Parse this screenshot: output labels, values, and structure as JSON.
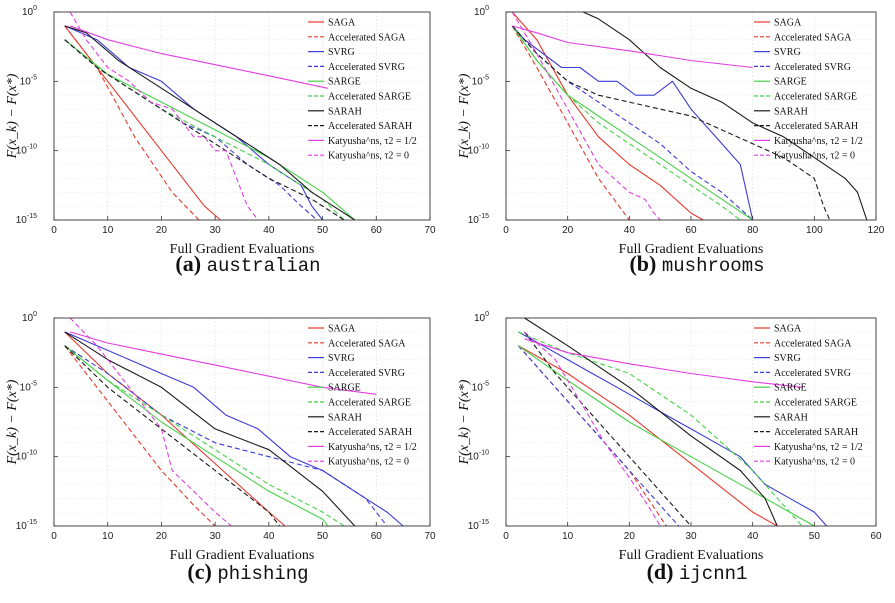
{
  "legend_entries": [
    {
      "name": "SAGA",
      "color": "#e8382c",
      "dash": false
    },
    {
      "name": "Accelerated SAGA",
      "color": "#e8382c",
      "dash": true
    },
    {
      "name": "SVRG",
      "color": "#3c3cd8",
      "dash": false
    },
    {
      "name": "Accelerated SVRG",
      "color": "#3c3cd8",
      "dash": true
    },
    {
      "name": "SARGE",
      "color": "#46d246",
      "dash": false
    },
    {
      "name": "Accelerated SARGE",
      "color": "#46d246",
      "dash": true
    },
    {
      "name": "SARAH",
      "color": "#1a1a1a",
      "dash": false
    },
    {
      "name": "Accelerated SARAH",
      "color": "#1a1a1a",
      "dash": true
    },
    {
      "name": "Katyusha^ns, τ2 = 1/2",
      "color": "#e23ee2",
      "dash": false
    },
    {
      "name": "Katyusha^ns, τ2 = 0",
      "color": "#e23ee2",
      "dash": true
    }
  ],
  "chart_data": [
    {
      "type": "line",
      "caption_letter": "(a)",
      "caption_name": "australian",
      "xlabel": "Full Gradient Evaluations",
      "ylabel": "F(x_k) − F(x*)",
      "xlim": [
        0,
        70
      ],
      "xticks": [
        0,
        10,
        20,
        30,
        40,
        50,
        60,
        70
      ],
      "ylim": [
        -15,
        0
      ],
      "yscale": "log",
      "yticks": [
        0,
        -5,
        -10,
        -15
      ],
      "grid": true,
      "legend": "top-right",
      "series": [
        {
          "name": "SAGA",
          "x": [
            2,
            10,
            20,
            28,
            31
          ],
          "y": [
            -1,
            -5,
            -10,
            -14,
            -15
          ]
        },
        {
          "name": "Accelerated SAGA",
          "x": [
            2,
            8,
            15,
            22,
            27
          ],
          "y": [
            -1,
            -4,
            -9,
            -13,
            -15
          ]
        },
        {
          "name": "SVRG",
          "x": [
            2,
            8,
            14,
            20,
            26,
            30,
            34,
            40,
            44,
            46,
            48,
            50
          ],
          "y": [
            -1,
            -2,
            -4,
            -5,
            -7,
            -8,
            -9,
            -11,
            -12,
            -12.5,
            -14,
            -15
          ]
        },
        {
          "name": "Accelerated SVRG",
          "x": [
            2,
            8,
            16,
            24,
            30,
            36,
            42,
            46,
            49
          ],
          "y": [
            -2,
            -4,
            -6,
            -8,
            -9,
            -11,
            -12.5,
            -14,
            -15
          ]
        },
        {
          "name": "SARGE",
          "x": [
            2,
            10,
            20,
            30,
            40,
            50,
            56
          ],
          "y": [
            -2,
            -4.5,
            -6.5,
            -8.5,
            -10.5,
            -13,
            -15
          ]
        },
        {
          "name": "Accelerated SARGE",
          "x": [
            2,
            10,
            20,
            30,
            40,
            50,
            54
          ],
          "y": [
            -2,
            -4.5,
            -7,
            -9,
            -11,
            -13.5,
            -15
          ]
        },
        {
          "name": "SARAH",
          "x": [
            2,
            6,
            12,
            18,
            24,
            30,
            36,
            42,
            48,
            54,
            56
          ],
          "y": [
            -1,
            -1.5,
            -3.5,
            -5,
            -6.5,
            -8,
            -9.5,
            -11,
            -13,
            -14.5,
            -15
          ]
        },
        {
          "name": "Accelerated SARAH",
          "x": [
            2,
            8,
            16,
            24,
            32,
            40,
            48,
            54
          ],
          "y": [
            -2,
            -4,
            -6,
            -8,
            -10,
            -12,
            -13.5,
            -15
          ]
        },
        {
          "name": "Katyusha^ns, τ2 = 1/2",
          "x": [
            3,
            10,
            20,
            30,
            40,
            51
          ],
          "y": [
            -1,
            -2,
            -3,
            -3.8,
            -4.6,
            -5.5
          ]
        },
        {
          "name": "Katyusha^ns, τ2 = 0",
          "x": [
            3,
            6,
            10,
            14,
            18,
            22,
            26,
            28,
            30,
            32,
            34,
            36,
            38
          ],
          "y": [
            0,
            -2,
            -4,
            -5,
            -6.5,
            -7,
            -9,
            -9,
            -10,
            -10,
            -12,
            -14,
            -15
          ]
        }
      ]
    },
    {
      "type": "line",
      "caption_letter": "(b)",
      "caption_name": "mushrooms",
      "xlabel": "Full Gradient Evaluations",
      "ylabel": "F(x_k) − F(x*)",
      "xlim": [
        0,
        120
      ],
      "xticks": [
        0,
        20,
        40,
        60,
        80,
        100,
        120
      ],
      "ylim": [
        -15,
        0
      ],
      "yscale": "log",
      "yticks": [
        0,
        -5,
        -10,
        -15
      ],
      "grid": true,
      "legend": "top-right",
      "series": [
        {
          "name": "SAGA",
          "x": [
            2,
            10,
            20,
            30,
            40,
            50,
            60,
            64
          ],
          "y": [
            0,
            -2,
            -6,
            -9,
            -11,
            -12.5,
            -14.5,
            -15
          ]
        },
        {
          "name": "Accelerated SAGA",
          "x": [
            2,
            10,
            20,
            30,
            40
          ],
          "y": [
            -1,
            -4,
            -8,
            -12,
            -15
          ]
        },
        {
          "name": "SVRG",
          "x": [
            2,
            6,
            12,
            18,
            24,
            30,
            36,
            42,
            48,
            54,
            60,
            68,
            76,
            80
          ],
          "y": [
            -1,
            -2,
            -3,
            -4,
            -4,
            -5,
            -5,
            -6,
            -6,
            -5,
            -7,
            -9,
            -11,
            -15
          ]
        },
        {
          "name": "Accelerated SVRG",
          "x": [
            2,
            10,
            20,
            30,
            40,
            50,
            60,
            70,
            80
          ],
          "y": [
            -1,
            -3,
            -5,
            -6.5,
            -8,
            -9.5,
            -11.5,
            -13,
            -15
          ]
        },
        {
          "name": "SARGE",
          "x": [
            2,
            10,
            20,
            30,
            40,
            50,
            60,
            70,
            80
          ],
          "y": [
            -1,
            -3.5,
            -6,
            -7.5,
            -9,
            -10.5,
            -12,
            -13.5,
            -15
          ]
        },
        {
          "name": "Accelerated SARGE",
          "x": [
            2,
            10,
            20,
            30,
            40,
            50,
            60,
            70,
            76
          ],
          "y": [
            -1,
            -3.5,
            -6,
            -8,
            -9.5,
            -11,
            -12.5,
            -14,
            -15
          ]
        },
        {
          "name": "SARAH",
          "x": [
            25,
            30,
            40,
            50,
            60,
            70,
            80,
            90,
            100,
            110,
            114,
            117
          ],
          "y": [
            0,
            -0.5,
            -2,
            -4,
            -5.5,
            -6.5,
            -8,
            -9,
            -10.5,
            -12,
            -13,
            -15
          ]
        },
        {
          "name": "Accelerated SARAH",
          "x": [
            2,
            10,
            20,
            30,
            40,
            50,
            60,
            70,
            80,
            90,
            100,
            103,
            105
          ],
          "y": [
            -1,
            -3,
            -5,
            -6,
            -6.5,
            -7,
            -7.5,
            -8.5,
            -9.5,
            -10.5,
            -12,
            -14,
            -15
          ]
        },
        {
          "name": "Katyusha^ns, τ2 = 1/2",
          "x": [
            2,
            10,
            20,
            40,
            60,
            80
          ],
          "y": [
            -1,
            -1.5,
            -2.2,
            -2.8,
            -3.5,
            -4
          ]
        },
        {
          "name": "Katyusha^ns, τ2 = 0",
          "x": [
            2,
            10,
            20,
            30,
            40,
            45,
            48,
            50
          ],
          "y": [
            0,
            -3,
            -7,
            -11,
            -13,
            -13.5,
            -14.5,
            -15
          ]
        }
      ]
    },
    {
      "type": "line",
      "caption_letter": "(c)",
      "caption_name": "phishing",
      "xlabel": "Full Gradient Evaluations",
      "ylabel": "F(x_k) − F(x*)",
      "xlim": [
        0,
        70
      ],
      "xticks": [
        0,
        10,
        20,
        30,
        40,
        50,
        60,
        70
      ],
      "ylim": [
        -15,
        0
      ],
      "yscale": "log",
      "yticks": [
        0,
        -5,
        -10,
        -15
      ],
      "grid": true,
      "legend": "top-right",
      "series": [
        {
          "name": "SAGA",
          "x": [
            2,
            10,
            20,
            30,
            40,
            43
          ],
          "y": [
            -1,
            -4,
            -7,
            -10.5,
            -14,
            -15
          ]
        },
        {
          "name": "Accelerated SAGA",
          "x": [
            2,
            10,
            20,
            26,
            30
          ],
          "y": [
            -2,
            -6,
            -11,
            -13.5,
            -15
          ]
        },
        {
          "name": "SVRG",
          "x": [
            2,
            8,
            14,
            20,
            26,
            32,
            38,
            44,
            50,
            54,
            58,
            62,
            65
          ],
          "y": [
            -1,
            -2,
            -3,
            -4,
            -5,
            -7,
            -8,
            -10,
            -11,
            -12,
            -13,
            -14,
            -15
          ]
        },
        {
          "name": "Accelerated SVRG",
          "x": [
            2,
            10,
            20,
            30,
            40,
            50,
            58,
            62
          ],
          "y": [
            -2,
            -4,
            -7,
            -9,
            -10,
            -11,
            -13,
            -15
          ]
        },
        {
          "name": "SARGE",
          "x": [
            2,
            10,
            20,
            30,
            40,
            50,
            51
          ],
          "y": [
            -2,
            -4.5,
            -7.5,
            -10,
            -12.5,
            -14.5,
            -15
          ]
        },
        {
          "name": "Accelerated SARGE",
          "x": [
            2,
            10,
            20,
            30,
            40,
            50,
            54
          ],
          "y": [
            -2,
            -4.5,
            -7,
            -9.5,
            -12,
            -14,
            -15
          ]
        },
        {
          "name": "SARAH",
          "x": [
            2,
            10,
            20,
            30,
            40,
            50,
            56
          ],
          "y": [
            -1,
            -3,
            -5,
            -8,
            -9.5,
            -12.5,
            -15
          ]
        },
        {
          "name": "Accelerated SARAH",
          "x": [
            2,
            10,
            20,
            30,
            40,
            42
          ],
          "y": [
            -2,
            -5,
            -8,
            -11,
            -14,
            -15
          ]
        },
        {
          "name": "Katyusha^ns, τ2 = 1/2",
          "x": [
            3,
            10,
            20,
            30,
            40,
            50,
            60
          ],
          "y": [
            -1,
            -1.8,
            -2.6,
            -3.4,
            -4.2,
            -5,
            -5.5
          ]
        },
        {
          "name": "Katyusha^ns, τ2 = 0",
          "x": [
            3,
            8,
            12,
            16,
            20,
            22,
            26,
            30,
            33
          ],
          "y": [
            0,
            -2,
            -4,
            -6,
            -8,
            -11,
            -12.5,
            -14,
            -15
          ]
        }
      ]
    },
    {
      "type": "line",
      "caption_letter": "(d)",
      "caption_name": "ijcnn1",
      "xlabel": "Full Gradient Evaluations",
      "ylabel": "F(x_k) − F(x*)",
      "xlim": [
        0,
        60
      ],
      "xticks": [
        0,
        10,
        20,
        30,
        40,
        50,
        60
      ],
      "ylim": [
        -15,
        0
      ],
      "yscale": "log",
      "yticks": [
        0,
        -5,
        -10,
        -15
      ],
      "grid": true,
      "legend": "top-right",
      "series": [
        {
          "name": "SAGA",
          "x": [
            2,
            10,
            20,
            30,
            40,
            44
          ],
          "y": [
            -2,
            -4,
            -7,
            -10.5,
            -14,
            -15
          ]
        },
        {
          "name": "Accelerated SAGA",
          "x": [
            2,
            10,
            20,
            26
          ],
          "y": [
            -2,
            -6,
            -11,
            -15
          ]
        },
        {
          "name": "SVRG",
          "x": [
            2,
            6,
            10,
            14,
            18,
            22,
            26,
            30,
            34,
            38,
            42,
            46,
            50,
            52
          ],
          "y": [
            -1,
            -2,
            -3,
            -4,
            -5,
            -6,
            -7,
            -8,
            -9,
            -10,
            -12,
            -13,
            -14,
            -15
          ]
        },
        {
          "name": "Accelerated SVRG",
          "x": [
            2,
            8,
            14,
            20,
            24,
            28
          ],
          "y": [
            -2,
            -5,
            -8,
            -11,
            -13,
            -15
          ]
        },
        {
          "name": "SARGE",
          "x": [
            2,
            10,
            20,
            30,
            40,
            50
          ],
          "y": [
            -2,
            -4.5,
            -7.5,
            -10,
            -12.5,
            -15
          ]
        },
        {
          "name": "Accelerated SARGE",
          "x": [
            2,
            10,
            20,
            30,
            40,
            48
          ],
          "y": [
            -1,
            -2.5,
            -4,
            -7,
            -11,
            -15
          ]
        },
        {
          "name": "SARAH",
          "x": [
            3,
            10,
            20,
            30,
            38,
            42,
            44
          ],
          "y": [
            0,
            -2,
            -5,
            -8.5,
            -11,
            -13,
            -15
          ]
        },
        {
          "name": "Accelerated SARAH",
          "x": [
            3,
            8,
            14,
            20,
            26,
            30
          ],
          "y": [
            -1,
            -4,
            -7,
            -10,
            -13,
            -15
          ]
        },
        {
          "name": "Katyusha^ns, τ2 = 1/2",
          "x": [
            3,
            10,
            20,
            30,
            40,
            48
          ],
          "y": [
            -1.5,
            -2.5,
            -3.3,
            -4,
            -4.6,
            -5
          ]
        },
        {
          "name": "Katyusha^ns, τ2 = 0",
          "x": [
            3,
            8,
            12,
            16,
            20,
            23,
            25
          ],
          "y": [
            -1,
            -3,
            -6,
            -9,
            -11.5,
            -13.5,
            -15
          ]
        }
      ]
    }
  ]
}
